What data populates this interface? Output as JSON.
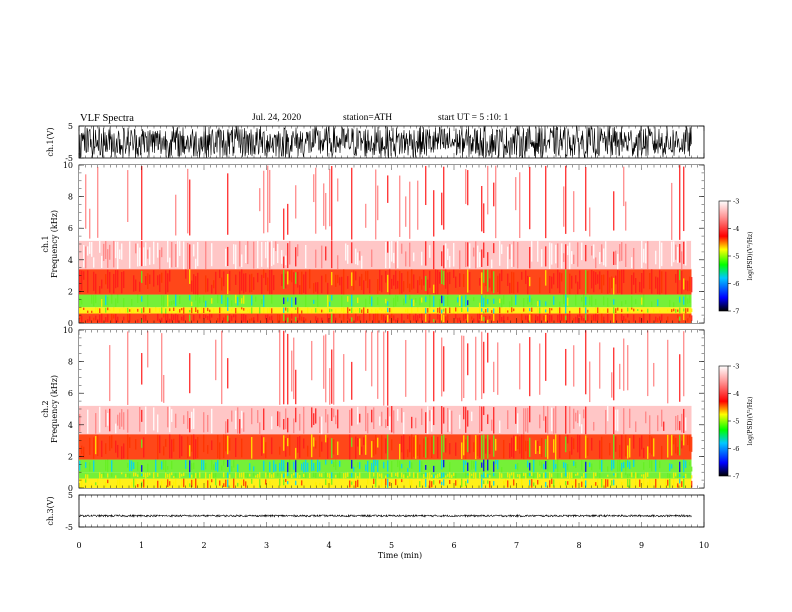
{
  "header": {
    "title": "VLF Spectra",
    "date": "Jul. 24, 2020",
    "station": "station=ATH",
    "start": "start UT =  5 :10: 1"
  },
  "colors": {
    "spectral_scale": [
      "#000000",
      "#0000ff",
      "#00c8ff",
      "#00ff00",
      "#ffff00",
      "#ff0000",
      "#ffffff"
    ],
    "signal": "#000000"
  },
  "chart_data": [
    {
      "type": "line",
      "panel": "ch1-waveform",
      "ylabel": "ch.1(V)",
      "ylim": [
        -5,
        5
      ],
      "ytick_labels": [
        "5",
        "-5"
      ],
      "description_values": {
        "amplitude_envelope_V": 5
      }
    },
    {
      "type": "heatmap",
      "panel": "ch1-spectrogram",
      "ylabel_line1": "ch.1",
      "ylabel_line2": "Frequency (kHz)",
      "ylim": [
        0,
        10
      ],
      "ytick_labels": [
        "0",
        "2",
        "4",
        "6",
        "8",
        "10"
      ],
      "bands_kHz": [
        {
          "from": 0.0,
          "to": 0.6,
          "level": -4.2
        },
        {
          "from": 0.6,
          "to": 1.0,
          "level": -4.6
        },
        {
          "from": 1.0,
          "to": 1.8,
          "level": -5.0
        },
        {
          "from": 1.8,
          "to": 3.4,
          "level": -4.2
        },
        {
          "from": 3.4,
          "to": 5.2,
          "level": -3.3
        },
        {
          "from": 5.2,
          "to": 10.0,
          "level": -3.1
        }
      ],
      "colorbar": {
        "label": "log(PSD)(V²/Hz)",
        "range": [
          -7,
          -3
        ],
        "tick_labels": [
          "-3",
          "-4",
          "-5",
          "-6",
          "-7"
        ]
      }
    },
    {
      "type": "heatmap",
      "panel": "ch2-spectrogram",
      "ylabel_line1": "ch.2",
      "ylabel_line2": "Frequency (kHz)",
      "ylim": [
        0,
        10
      ],
      "ytick_labels": [
        "0",
        "2",
        "4",
        "6",
        "8",
        "10"
      ],
      "bands_kHz": [
        {
          "from": 0.0,
          "to": 0.6,
          "level": -4.6
        },
        {
          "from": 0.6,
          "to": 1.0,
          "level": -4.8
        },
        {
          "from": 1.0,
          "to": 1.8,
          "level": -5.1
        },
        {
          "from": 1.8,
          "to": 3.4,
          "level": -4.3
        },
        {
          "from": 3.4,
          "to": 5.2,
          "level": -3.4
        },
        {
          "from": 5.2,
          "to": 10.0,
          "level": -3.1
        }
      ],
      "colorbar": {
        "label": "log(PSD)(V²/Hz)",
        "range": [
          -7,
          -3
        ],
        "tick_labels": [
          "-3",
          "-4",
          "-5",
          "-6",
          "-7"
        ]
      }
    },
    {
      "type": "line",
      "panel": "ch3-waveform",
      "ylabel": "ch.3(V)",
      "ylim": [
        -5,
        5
      ],
      "ytick_labels": [
        "5",
        "-5"
      ],
      "description_values": {
        "amplitude_envelope_V": 0.3,
        "offset_V": -1.5
      }
    }
  ],
  "xaxis": {
    "label": "Time (min)",
    "xlim": [
      0,
      10
    ],
    "data_end_min": 9.8,
    "tick_labels": [
      "0",
      "1",
      "2",
      "3",
      "4",
      "5",
      "6",
      "7",
      "8",
      "9",
      "10"
    ]
  }
}
